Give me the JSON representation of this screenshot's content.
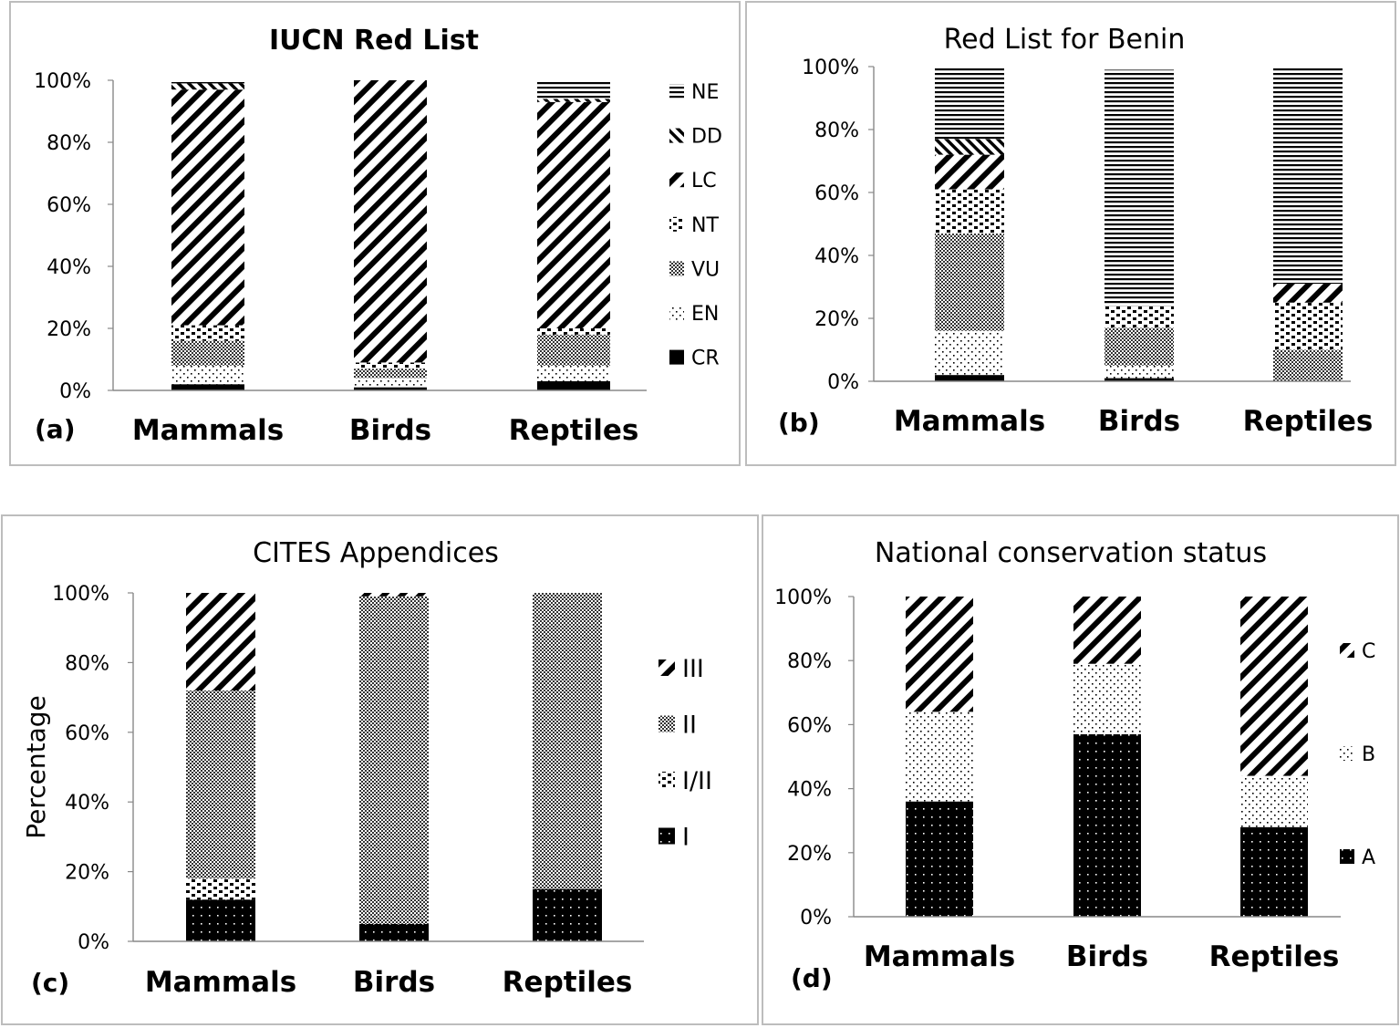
{
  "chart_data": [
    {
      "type": "bar",
      "stacked": true,
      "panel": "(a)",
      "title": "IUCN Red List",
      "title_bold": true,
      "categories": [
        "Mammals",
        "Birds",
        "Reptiles"
      ],
      "ylim": [
        0,
        100
      ],
      "yticks": [
        "0%",
        "20%",
        "40%",
        "60%",
        "80%",
        "100%"
      ],
      "series": [
        {
          "name": "CR",
          "pattern": "solid",
          "values": [
            2,
            1,
            3
          ]
        },
        {
          "name": "EN",
          "pattern": "dots",
          "values": [
            6,
            3,
            5
          ]
        },
        {
          "name": "VU",
          "pattern": "checker",
          "values": [
            8,
            3,
            10
          ]
        },
        {
          "name": "NT",
          "pattern": "dashes",
          "values": [
            5,
            2,
            2
          ]
        },
        {
          "name": "LC",
          "pattern": "diagup",
          "values": [
            76,
            91,
            73
          ]
        },
        {
          "name": "DD",
          "pattern": "diagdown",
          "values": [
            2,
            0,
            1
          ]
        },
        {
          "name": "NE",
          "pattern": "horiz",
          "values": [
            1,
            0,
            6
          ]
        }
      ],
      "legend_position": "right"
    },
    {
      "type": "bar",
      "stacked": true,
      "panel": "(b)",
      "title": "Red List for Benin",
      "title_bold": false,
      "categories": [
        "Mammals",
        "Birds",
        "Reptiles"
      ],
      "ylim": [
        0,
        100
      ],
      "yticks": [
        "0%",
        "20%",
        "40%",
        "60%",
        "80%",
        "100%"
      ],
      "series": [
        {
          "name": "CR",
          "pattern": "solid",
          "values": [
            2,
            1,
            0
          ]
        },
        {
          "name": "EN",
          "pattern": "dots",
          "values": [
            14,
            4,
            0
          ]
        },
        {
          "name": "VU",
          "pattern": "checker",
          "values": [
            31,
            12,
            10
          ]
        },
        {
          "name": "NT",
          "pattern": "dashes",
          "values": [
            14,
            7,
            15
          ]
        },
        {
          "name": "LC",
          "pattern": "diagup",
          "values": [
            11,
            0,
            6
          ]
        },
        {
          "name": "DD",
          "pattern": "diagdown",
          "values": [
            5,
            0,
            0
          ]
        },
        {
          "name": "NE",
          "pattern": "horiz",
          "values": [
            23,
            75,
            69
          ]
        }
      ]
    },
    {
      "type": "bar",
      "stacked": true,
      "panel": "(c)",
      "title": "CITES Appendices",
      "title_bold": false,
      "ylabel": "Percentage",
      "categories": [
        "Mammals",
        "Birds",
        "Reptiles"
      ],
      "ylim": [
        0,
        100
      ],
      "yticks": [
        "0%",
        "20%",
        "40%",
        "60%",
        "80%",
        "100%"
      ],
      "series": [
        {
          "name": "I",
          "pattern": "solid_dots",
          "values": [
            12,
            5,
            15
          ]
        },
        {
          "name": "I/II",
          "pattern": "dashes",
          "values": [
            6,
            0,
            0
          ]
        },
        {
          "name": "II",
          "pattern": "checker",
          "values": [
            54,
            94,
            85
          ]
        },
        {
          "name": "III",
          "pattern": "diagup",
          "values": [
            28,
            1,
            0
          ]
        }
      ],
      "legend_position": "right"
    },
    {
      "type": "bar",
      "stacked": true,
      "panel": "(d)",
      "title": "National conservation status",
      "title_bold": false,
      "categories": [
        "Mammals",
        "Birds",
        "Reptiles"
      ],
      "ylim": [
        0,
        100
      ],
      "yticks": [
        "0%",
        "20%",
        "40%",
        "60%",
        "80%",
        "100%"
      ],
      "series": [
        {
          "name": "A",
          "pattern": "solid_dots",
          "values": [
            36,
            57,
            28
          ]
        },
        {
          "name": "B",
          "pattern": "dots",
          "values": [
            28,
            22,
            16
          ]
        },
        {
          "name": "C",
          "pattern": "diagup",
          "values": [
            36,
            21,
            56
          ]
        }
      ],
      "legend_position": "right"
    }
  ]
}
